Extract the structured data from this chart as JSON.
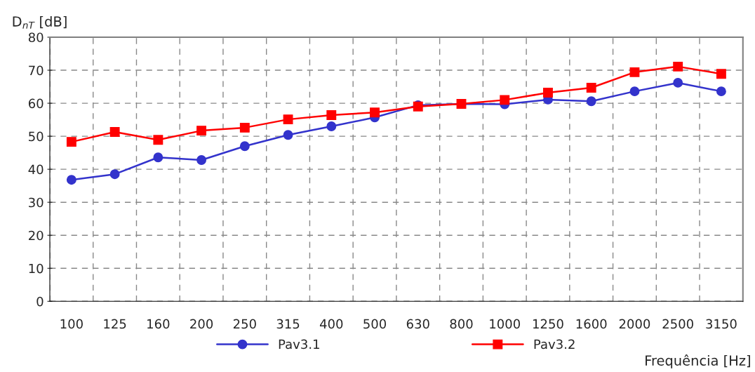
{
  "chart_data": {
    "type": "line",
    "ylabel": "D$_{nT}$ [dB]",
    "xlabel": "Frequência [Hz]",
    "categories": [
      "100",
      "125",
      "160",
      "200",
      "250",
      "315",
      "400",
      "500",
      "630",
      "800",
      "1000",
      "1250",
      "1600",
      "2000",
      "2500",
      "3150"
    ],
    "series": [
      {
        "name": "Pav3.1",
        "color": "#3333cc",
        "marker": "circle",
        "values": [
          36.8,
          38.5,
          43.6,
          42.8,
          47.0,
          50.4,
          53.0,
          55.7,
          59.4,
          59.8,
          59.7,
          61.1,
          60.6,
          63.6,
          66.2,
          63.6
        ]
      },
      {
        "name": "Pav3.2",
        "color": "#ff0000",
        "marker": "square",
        "values": [
          48.3,
          51.3,
          48.9,
          51.7,
          52.6,
          55.1,
          56.4,
          57.2,
          59.0,
          59.8,
          61.0,
          63.2,
          64.7,
          69.4,
          71.1,
          68.9
        ]
      }
    ],
    "ylim": [
      0,
      80
    ],
    "yticks": [
      0,
      10,
      20,
      30,
      40,
      50,
      60,
      70,
      80
    ],
    "grid": true,
    "legend": "bottom",
    "line_style": "solid"
  }
}
